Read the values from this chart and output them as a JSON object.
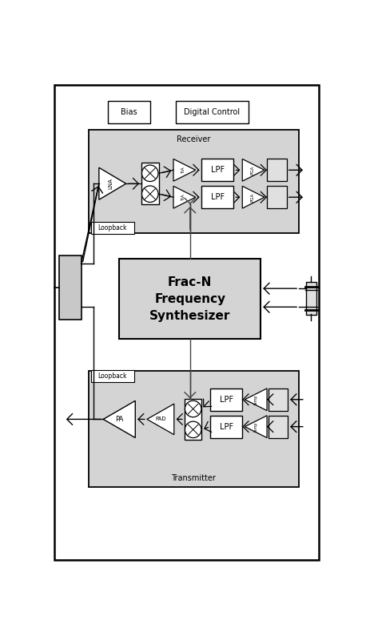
{
  "fig_width": 4.58,
  "fig_height": 7.94,
  "dpi": 100,
  "bg_color": "#ffffff",
  "receiver_label": "Receiver",
  "synth_label": "Frac-N\nFrequency\nSynthesizer",
  "transmitter_label": "Transmitter",
  "bias_label": "Bias",
  "dc_label": "Digital Control",
  "loopback_rx": "Loopback",
  "loopback_tx": "Loopback",
  "gray_fill": "#d4d4d4",
  "white_fill": "#ffffff",
  "synth_fill": "#d4d4d4",
  "black": "#000000"
}
